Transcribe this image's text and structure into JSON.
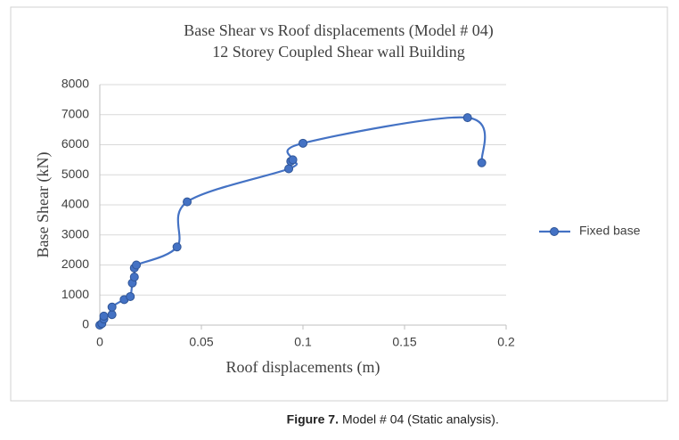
{
  "chart_data": {
    "type": "scatter-smooth",
    "title": "Base Shear vs Roof displacements (Model # 04)",
    "subtitle": "12 Storey Coupled Shear wall Building",
    "x_label": "Roof displacements  (m)",
    "y_label": "Base Shear (kN)",
    "series": [
      {
        "name": "Fixed base",
        "color": "#4472c4",
        "x": [
          0,
          0.001,
          0.002,
          0.002,
          0.006,
          0.006,
          0.012,
          0.015,
          0.016,
          0.017,
          0.017,
          0.018,
          0.038,
          0.043,
          0.093,
          0.094,
          0.095,
          0.1,
          0.181,
          0.188
        ],
        "values": [
          0,
          50,
          200,
          300,
          350,
          600,
          850,
          950,
          1400,
          1600,
          1900,
          2000,
          2600,
          4100,
          5200,
          5450,
          5500,
          6050,
          6900,
          5400
        ]
      }
    ],
    "xlim": [
      0,
      0.2
    ],
    "xticks": [
      0,
      0.05,
      0.1,
      0.15,
      0.2
    ],
    "ylim": [
      0,
      8000
    ],
    "yticks": [
      0,
      1000,
      2000,
      3000,
      4000,
      5000,
      6000,
      7000,
      8000
    ],
    "grid": true,
    "legend": "right"
  },
  "caption": {
    "label": "Figure 7.",
    "text": "Model # 04 (Static analysis)."
  }
}
